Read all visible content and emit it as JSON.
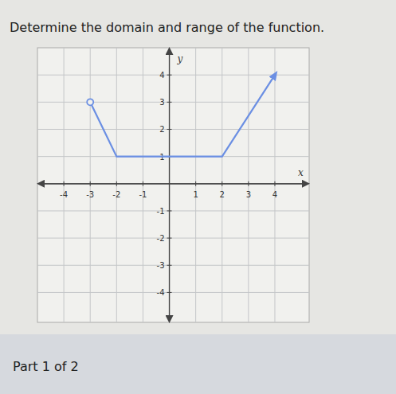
{
  "chart_data": {
    "type": "line",
    "title": "Determine the domain and range of the function.",
    "x_label": "x",
    "y_label": "y",
    "x": [
      -3,
      -2,
      2,
      4
    ],
    "values": [
      3,
      1,
      1,
      4
    ],
    "color": "#6b8fe3",
    "marker": "open_circle",
    "xlim": [
      -5,
      5.3
    ],
    "ylim": [
      -5.1,
      5
    ],
    "xticks": [
      -4,
      -3,
      -2,
      -1,
      1,
      2,
      3,
      4
    ],
    "yticks": [
      -4,
      -3,
      -2,
      -1,
      1,
      2,
      3,
      4
    ],
    "grid": true
  },
  "footer": "Part 1 of 2"
}
